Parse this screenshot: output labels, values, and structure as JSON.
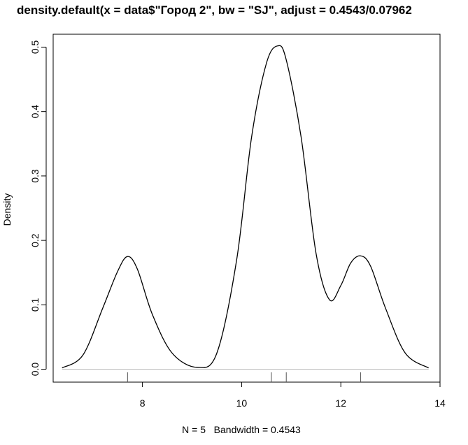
{
  "chart_data": {
    "type": "line",
    "title": "density.default(x = data$\"Город 2\", bw = \"SJ\", adjust = 0.4543/0.07962",
    "xlabel": "N = 5   Bandwidth = 0.4543",
    "ylabel": "Density",
    "xlim": [
      6.2,
      14.0
    ],
    "ylim": [
      -0.02,
      0.52
    ],
    "x_ticks": [
      8,
      10,
      12,
      14
    ],
    "y_ticks": [
      0.0,
      0.1,
      0.2,
      0.3,
      0.4,
      0.5
    ],
    "x_tick_labels": [
      "8",
      "10",
      "12",
      "14"
    ],
    "y_tick_labels": [
      "0.0",
      "0.1",
      "0.2",
      "0.3",
      "0.4",
      "0.5"
    ],
    "bandwidth": 0.4543,
    "n": 5,
    "rug": [
      7.7,
      10.6,
      10.9,
      12.4
    ],
    "series": [
      {
        "x": [
          6.38,
          6.8,
          7.2,
          7.5,
          7.7,
          7.9,
          8.2,
          8.6,
          9.1,
          9.5,
          9.9,
          10.2,
          10.5,
          10.73,
          10.9,
          11.2,
          11.5,
          11.77,
          12.0,
          12.2,
          12.4,
          12.6,
          12.9,
          13.3,
          13.77
        ],
        "y": [
          0.002,
          0.022,
          0.095,
          0.152,
          0.175,
          0.155,
          0.085,
          0.025,
          0.003,
          0.025,
          0.17,
          0.36,
          0.475,
          0.502,
          0.48,
          0.36,
          0.18,
          0.108,
          0.13,
          0.165,
          0.176,
          0.16,
          0.095,
          0.025,
          0.002
        ]
      }
    ]
  }
}
